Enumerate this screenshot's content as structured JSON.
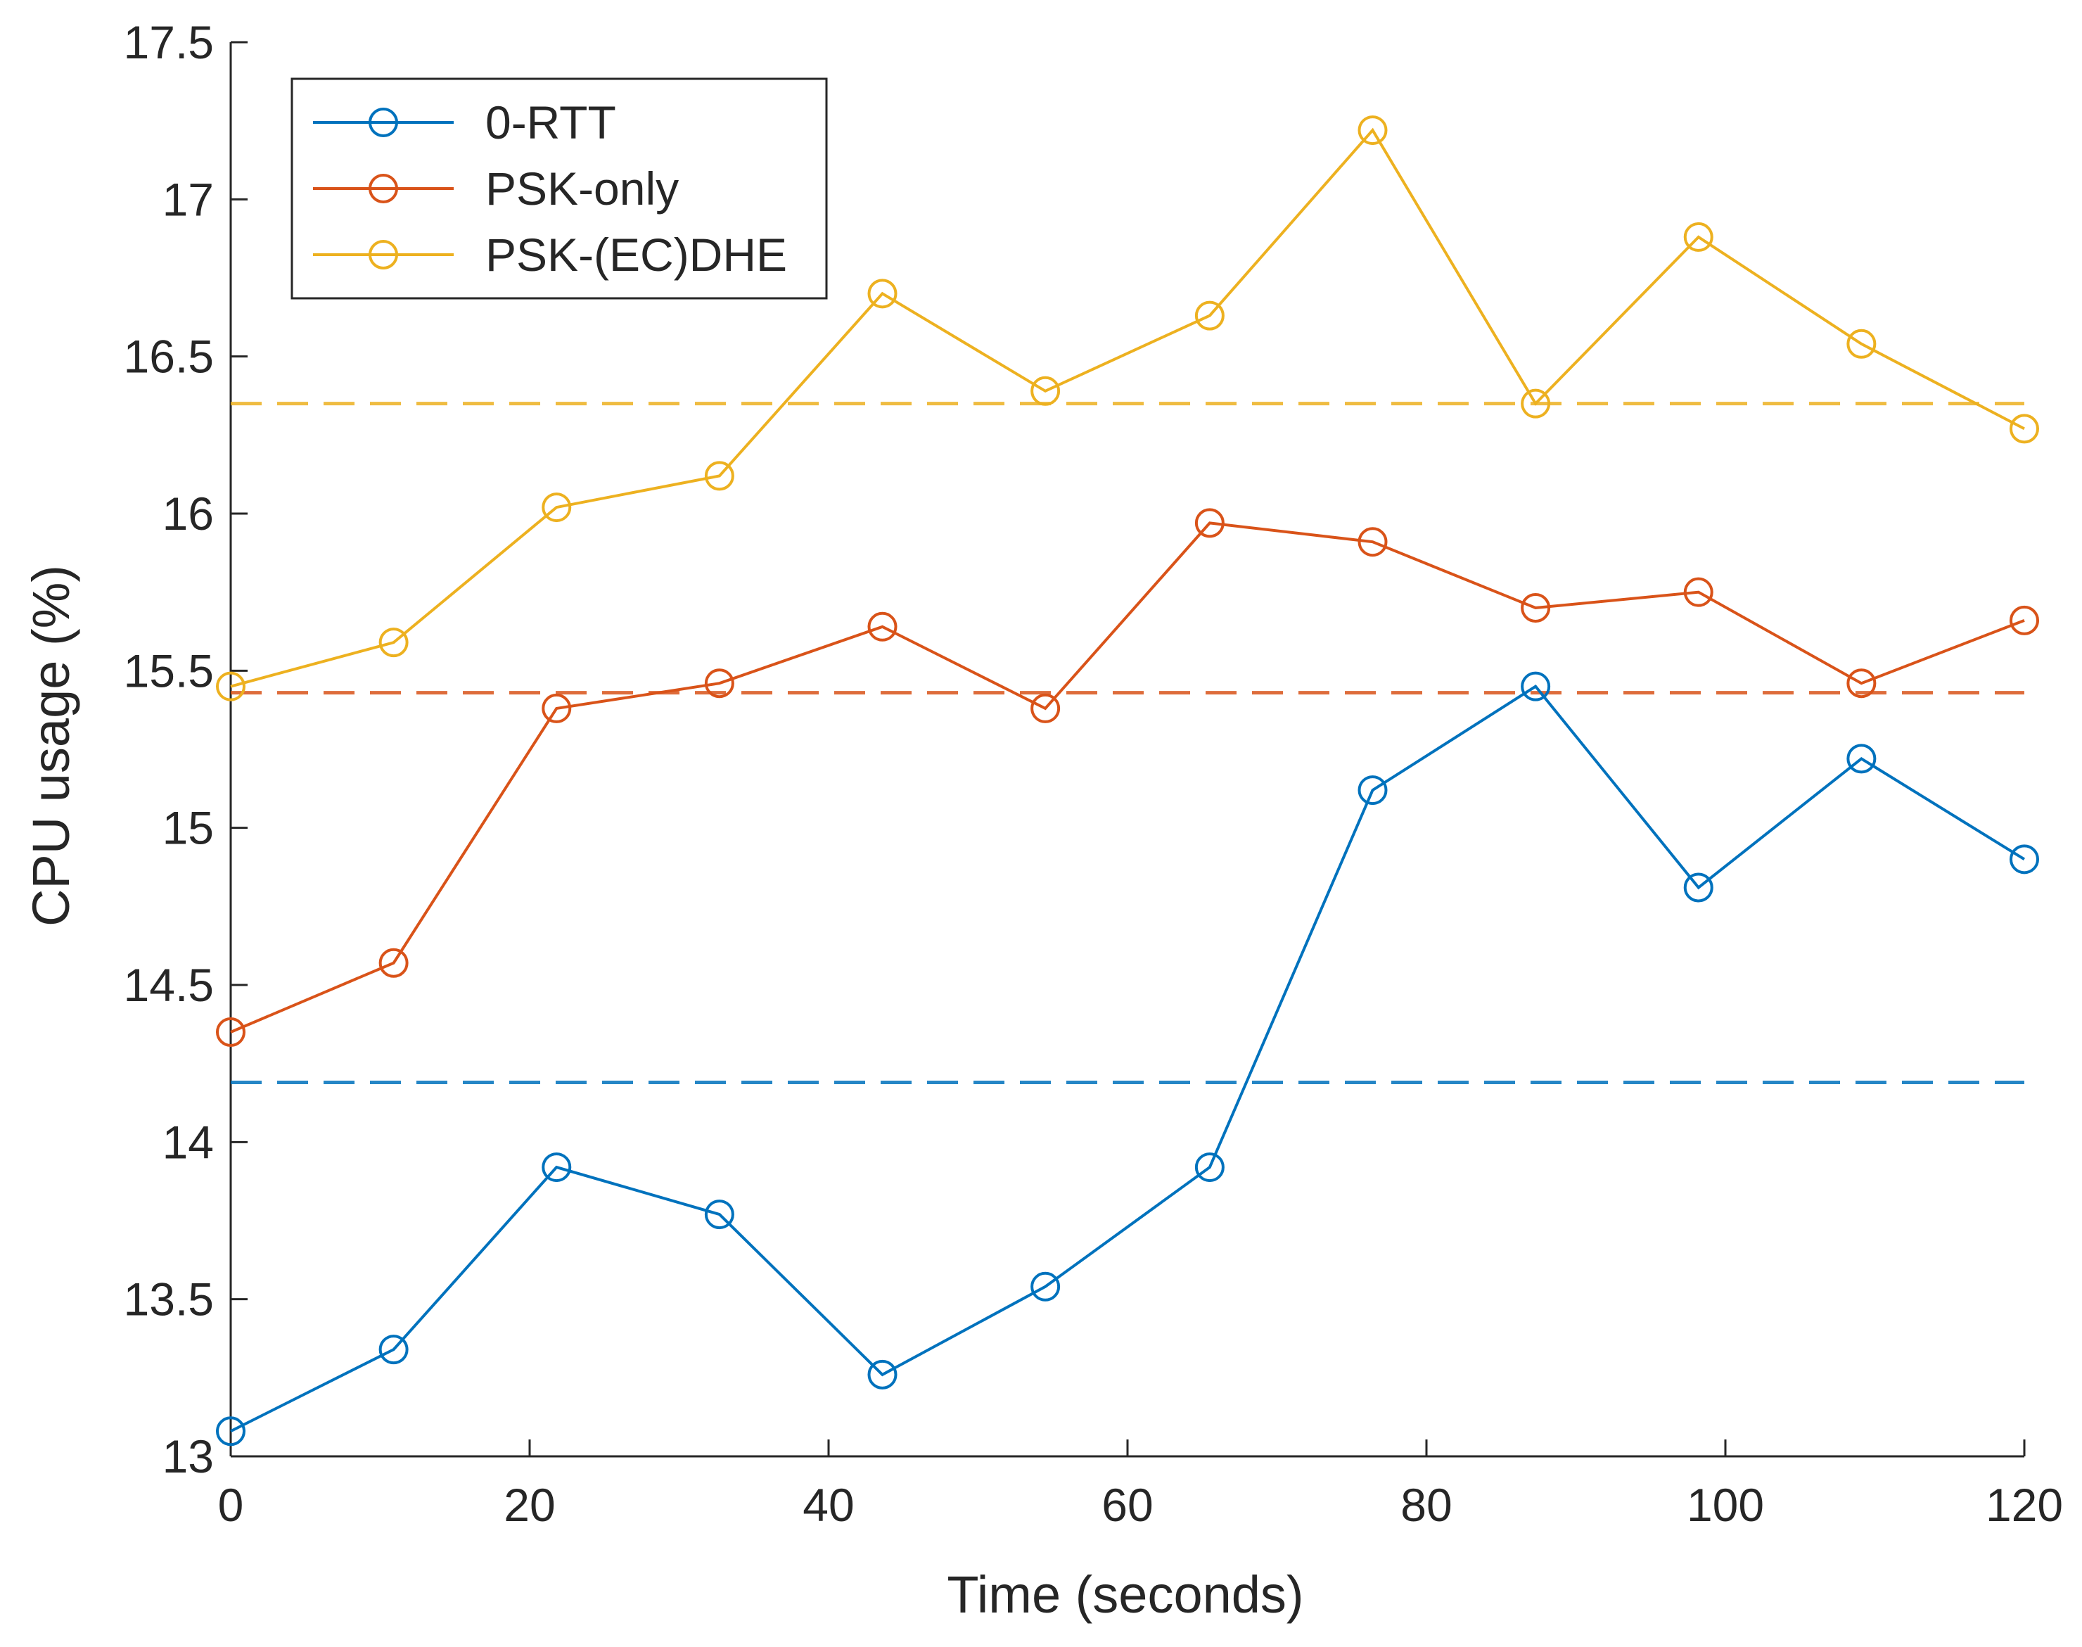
{
  "chart_data": {
    "type": "line",
    "xlabel": "Time (seconds)",
    "ylabel": "CPU usage (%)",
    "xlim": [
      0,
      120
    ],
    "ylim": [
      13,
      17.5
    ],
    "x_ticks": [
      "0",
      "20",
      "40",
      "60",
      "80",
      "100",
      "120"
    ],
    "y_ticks": [
      "13",
      "13.5",
      "14",
      "14.5",
      "15",
      "15.5",
      "16",
      "16.5",
      "17",
      "17.5"
    ],
    "grid": false,
    "legend_position": "top-left",
    "x": [
      0,
      10.9,
      21.8,
      32.7,
      43.6,
      54.5,
      65.5,
      76.4,
      87.3,
      98.2,
      109.1,
      120
    ],
    "series": [
      {
        "name": "0-RTT",
        "color": "#0072BD",
        "marker": "circle",
        "values": [
          13.08,
          13.34,
          13.92,
          13.77,
          13.26,
          13.54,
          13.92,
          15.12,
          15.45,
          14.81,
          15.22,
          14.9
        ],
        "mean": 14.19
      },
      {
        "name": "PSK-only",
        "color": "#D95319",
        "marker": "circle",
        "values": [
          14.35,
          14.57,
          15.38,
          15.46,
          15.64,
          15.38,
          15.97,
          15.91,
          15.7,
          15.75,
          15.46,
          15.66
        ],
        "mean": 15.43
      },
      {
        "name": "PSK-(EC)DHE",
        "color": "#EDB120",
        "marker": "circle",
        "values": [
          15.45,
          15.59,
          16.02,
          16.12,
          16.7,
          16.39,
          16.63,
          17.22,
          16.35,
          16.88,
          16.54,
          16.27
        ],
        "mean": 16.35
      }
    ]
  }
}
